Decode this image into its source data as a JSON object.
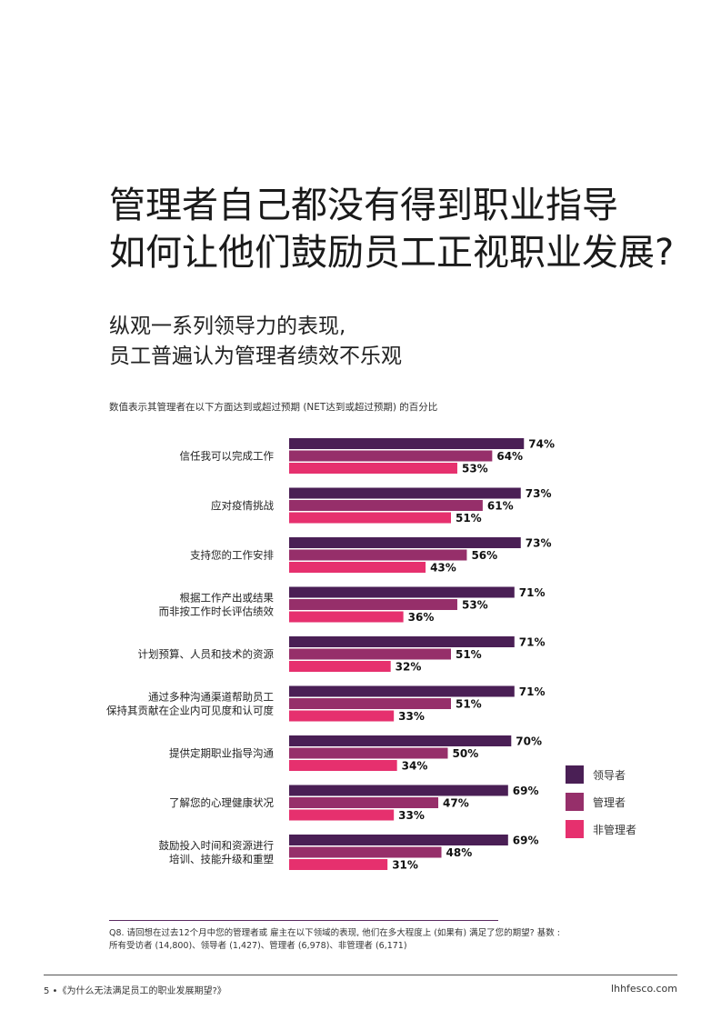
{
  "header": {
    "title_line1": "管理者自己都没有得到职业指导",
    "title_line2": "如何让他们鼓励员工正视职业发展?",
    "subtitle_line1": "纵观一系列领导力的表现,",
    "subtitle_line2": "员工普遍认为管理者绩效不乐观",
    "note": "数值表示其管理者在以下方面达到或超过预期 (NET达到或超过预期) 的百分比"
  },
  "colors": {
    "leaders": "#4a1f55",
    "managers": "#962f6a",
    "non_managers": "#e6306e"
  },
  "chart_data": {
    "type": "bar",
    "orientation": "horizontal",
    "xlim": [
      0,
      100
    ],
    "categories": [
      [
        "信任我可以完成工作"
      ],
      [
        "应对疫情挑战"
      ],
      [
        "支持您的工作安排"
      ],
      [
        "根据工作产出或结果",
        "而非按工作时长评估绩效"
      ],
      [
        "计划预算、人员和技术的资源"
      ],
      [
        "通过多种沟通渠道帮助员工",
        "保持其贡献在企业内可见度和认可度"
      ],
      [
        "提供定期职业指导沟通"
      ],
      [
        "了解您的心理健康状况"
      ],
      [
        "鼓励投入时间和资源进行",
        "培训、技能升级和重塑"
      ]
    ],
    "series": [
      {
        "name": "领导者",
        "color": "#4a1f55",
        "values": [
          74,
          73,
          73,
          71,
          71,
          71,
          70,
          69,
          69
        ]
      },
      {
        "name": "管理者",
        "color": "#962f6a",
        "values": [
          64,
          61,
          56,
          53,
          51,
          51,
          50,
          47,
          48
        ]
      },
      {
        "name": "非管理者",
        "color": "#e6306e",
        "values": [
          53,
          51,
          43,
          36,
          32,
          33,
          34,
          33,
          31
        ]
      }
    ],
    "value_suffix": "%",
    "legend": "right"
  },
  "footnote": {
    "line1": "Q8. 请回想在过去12个月中您的管理者或 雇主在以下领域的表现, 他们在多大程度上 (如果有) 满足了您的期望? 基数 :",
    "line2": "所有受访者 (14,800)、领导者 (1,427)、管理者 (6,978)、非管理者 (6,171)"
  },
  "footer": {
    "left": "5 •《为什么无法满足员工的职业发展期望?》",
    "right": "lhhfesco.com"
  }
}
